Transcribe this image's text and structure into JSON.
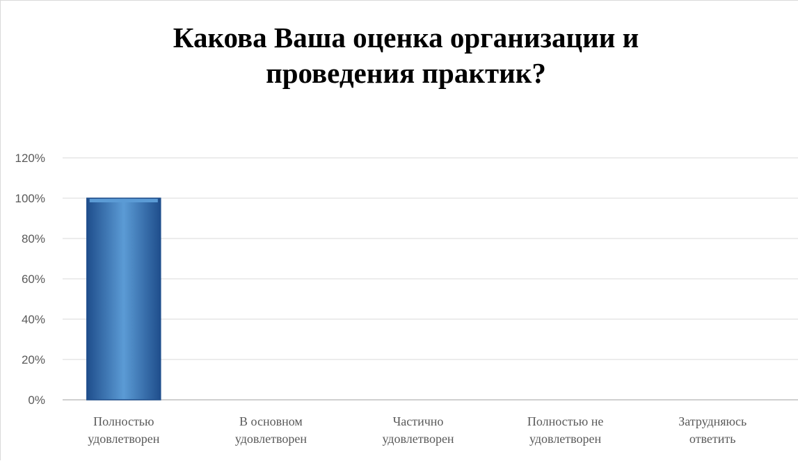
{
  "chart_data": {
    "type": "bar",
    "title": "Какова Ваша оценка организации и\nпроведения практик?",
    "categories": [
      [
        "Полностью",
        "удовлетворен"
      ],
      [
        "В основном",
        "удовлетворен"
      ],
      [
        "Частично",
        "удовлетворен"
      ],
      [
        "Полностью не",
        "удовлетворен"
      ],
      [
        "Затрудняюсь",
        "ответить"
      ]
    ],
    "values": [
      100,
      0,
      0,
      0,
      0
    ],
    "ylim": [
      0,
      120
    ],
    "yticks": [
      0,
      20,
      40,
      60,
      80,
      100,
      120
    ],
    "ytick_format": "%",
    "grid": true,
    "legend": "none",
    "colors": {
      "bar_light": "#5b9bd5",
      "bar_mid": "#3d7cc4",
      "bar_dark": "#1f4e8c",
      "grid": "#d9d9d9",
      "axis": "#bfbfbf"
    }
  }
}
